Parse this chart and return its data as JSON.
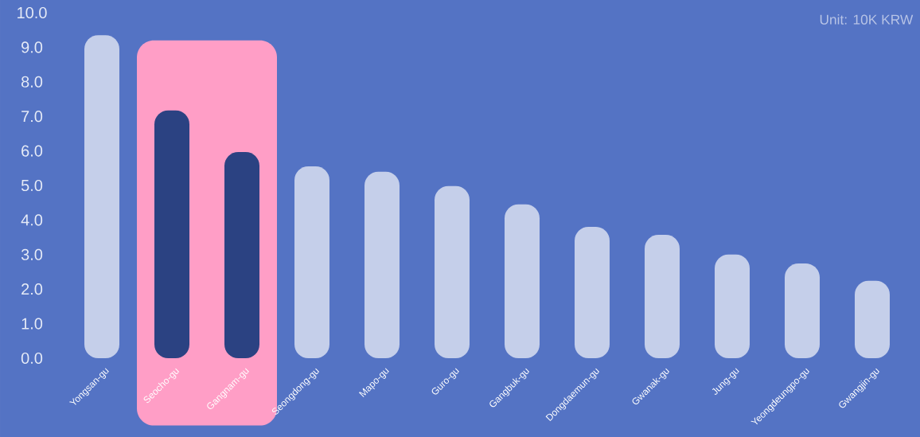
{
  "chart_data": {
    "type": "bar",
    "categories": [
      "Yongsan-gu",
      "Seocho-gu",
      "Gangnam-gu",
      "Seongdong-gu",
      "Mapo-gu",
      "Guro-gu",
      "Gangbuk-gu",
      "Dongdaemun-gu",
      "Gwanak-gu",
      "Jung-gu",
      "Yeongdeungpo-gu",
      "Gwangjin-gu"
    ],
    "values": [
      9.35,
      7.17,
      5.97,
      5.55,
      5.4,
      4.98,
      4.45,
      3.8,
      3.57,
      3.0,
      2.74,
      2.24
    ],
    "colors": [
      "#c5cfea",
      "#2b4282",
      "#2b4282",
      "#c5cfea",
      "#c5cfea",
      "#c5cfea",
      "#c5cfea",
      "#c5cfea",
      "#c5cfea",
      "#c5cfea",
      "#c5cfea",
      "#c5cfea"
    ],
    "ylim": [
      0,
      10
    ],
    "yticks": [
      {
        "value": 0,
        "label": "0.0"
      },
      {
        "value": 1,
        "label": "1.0"
      },
      {
        "value": 2,
        "label": "2.0"
      },
      {
        "value": 3,
        "label": "3.0"
      },
      {
        "value": 4,
        "label": "4.0"
      },
      {
        "value": 5,
        "label": "5.0"
      },
      {
        "value": 6,
        "label": "6.0"
      },
      {
        "value": 7,
        "label": "7.0"
      },
      {
        "value": 8,
        "label": "8.0"
      },
      {
        "value": 9,
        "label": "9.0"
      },
      {
        "value": 10,
        "label": "10.0"
      }
    ],
    "bands": [
      {
        "axis": "x",
        "from": "Seocho-gu",
        "to": "Gangnam-gu",
        "color": "#ff9ec6"
      }
    ],
    "annotations": [
      "Unit: 10K KRW"
    ]
  }
}
